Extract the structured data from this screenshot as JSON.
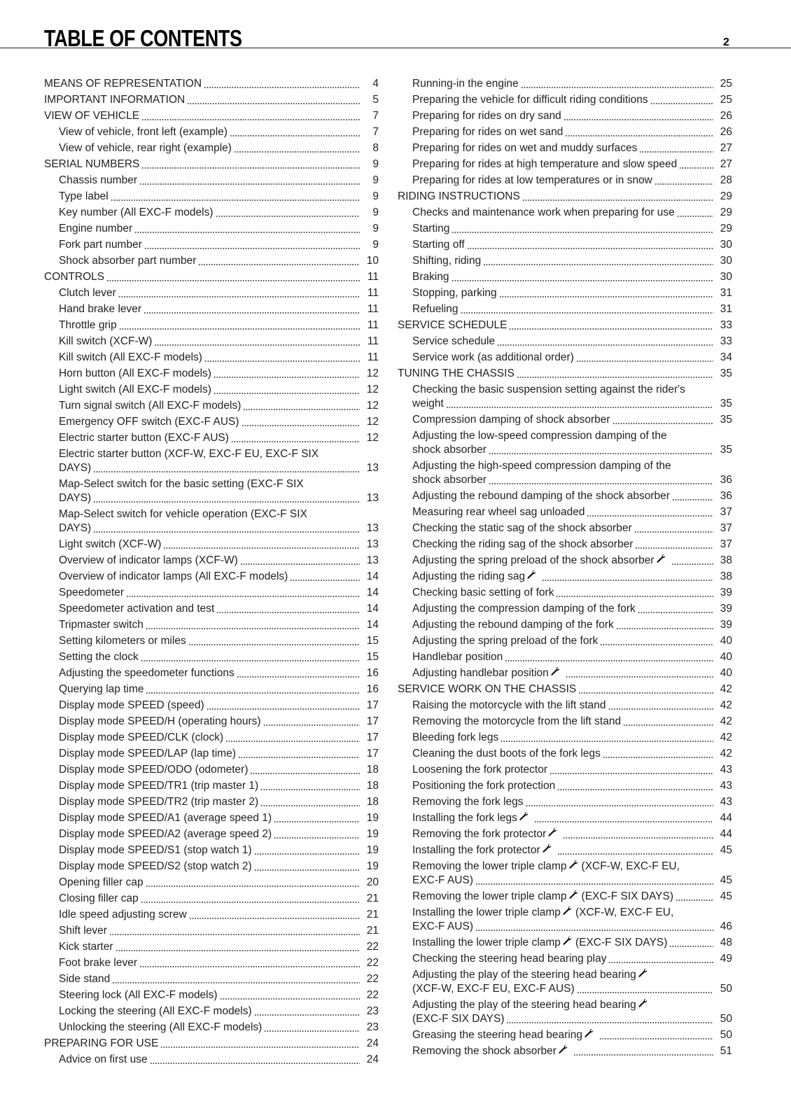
{
  "header": {
    "title": "TABLE OF CONTENTS",
    "page_number": "2"
  },
  "icons": {
    "wrench": "wrench-icon"
  },
  "left_column": [
    {
      "level": 0,
      "text": "MEANS OF REPRESENTATION",
      "page": "4"
    },
    {
      "level": 0,
      "text": "IMPORTANT INFORMATION",
      "page": "5"
    },
    {
      "level": 0,
      "text": "VIEW OF VEHICLE",
      "page": "7"
    },
    {
      "level": 1,
      "text": "View of vehicle, front left (example)",
      "page": "7"
    },
    {
      "level": 1,
      "text": "View of vehicle, rear right (example)",
      "page": "8"
    },
    {
      "level": 0,
      "text": "SERIAL NUMBERS",
      "page": "9"
    },
    {
      "level": 1,
      "text": "Chassis number",
      "page": "9"
    },
    {
      "level": 1,
      "text": "Type label",
      "page": "9"
    },
    {
      "level": 1,
      "text": "Key number (All EXC-F models)",
      "page": "9"
    },
    {
      "level": 1,
      "text": "Engine number",
      "page": "9"
    },
    {
      "level": 1,
      "text": "Fork part number",
      "page": "9"
    },
    {
      "level": 1,
      "text": "Shock absorber part number",
      "page": "10"
    },
    {
      "level": 0,
      "text": "CONTROLS",
      "page": "11"
    },
    {
      "level": 1,
      "text": "Clutch lever",
      "page": "11"
    },
    {
      "level": 1,
      "text": "Hand brake lever",
      "page": "11"
    },
    {
      "level": 1,
      "text": "Throttle grip",
      "page": "11"
    },
    {
      "level": 1,
      "text": "Kill switch (XCF-W)",
      "page": "11"
    },
    {
      "level": 1,
      "text": "Kill switch (All EXC-F models)",
      "page": "11"
    },
    {
      "level": 1,
      "text": "Horn button (All EXC-F models)",
      "page": "12"
    },
    {
      "level": 1,
      "text": "Light switch (All EXC-F models)",
      "page": "12"
    },
    {
      "level": 1,
      "text": "Turn signal switch (All EXC-F models)",
      "page": "12"
    },
    {
      "level": 1,
      "text": "Emergency OFF switch (EXC-F AUS)",
      "page": "12"
    },
    {
      "level": 1,
      "text": "Electric starter button (EXC-F AUS)",
      "page": "12"
    },
    {
      "level": 1,
      "text": "Electric starter button (XCF-W, EXC-F EU, EXC-F SIX",
      "cont": "DAYS)",
      "page": "13"
    },
    {
      "level": 1,
      "text": "Map-Select switch for the basic setting (EXC-F SIX",
      "cont": "DAYS)",
      "page": "13"
    },
    {
      "level": 1,
      "text": "Map-Select switch for vehicle operation (EXC-F SIX",
      "cont": "DAYS)",
      "page": "13"
    },
    {
      "level": 1,
      "text": "Light switch (XCF-W)",
      "page": "13"
    },
    {
      "level": 1,
      "text": "Overview of indicator lamps (XCF-W)",
      "page": "13"
    },
    {
      "level": 1,
      "text": "Overview of indicator lamps (All EXC-F models)",
      "page": "14"
    },
    {
      "level": 1,
      "text": "Speedometer",
      "page": "14"
    },
    {
      "level": 1,
      "text": "Speedometer activation and test",
      "page": "14"
    },
    {
      "level": 1,
      "text": "Tripmaster switch",
      "page": "14"
    },
    {
      "level": 1,
      "text": "Setting kilometers or miles",
      "page": "15"
    },
    {
      "level": 1,
      "text": "Setting the clock",
      "page": "15"
    },
    {
      "level": 1,
      "text": "Adjusting the speedometer functions",
      "page": "16"
    },
    {
      "level": 1,
      "text": "Querying lap time",
      "page": "16"
    },
    {
      "level": 1,
      "text": "Display mode SPEED (speed)",
      "page": "17"
    },
    {
      "level": 1,
      "text": "Display mode SPEED/H (operating hours)",
      "page": "17"
    },
    {
      "level": 1,
      "text": "Display mode SPEED/CLK (clock)",
      "page": "17"
    },
    {
      "level": 1,
      "text": "Display mode SPEED/LAP (lap time)",
      "page": "17"
    },
    {
      "level": 1,
      "text": "Display mode SPEED/ODO (odometer)",
      "page": "18"
    },
    {
      "level": 1,
      "text": "Display mode SPEED/TR1 (trip master 1)",
      "page": "18"
    },
    {
      "level": 1,
      "text": "Display mode SPEED/TR2 (trip master 2)",
      "page": "18"
    },
    {
      "level": 1,
      "text": "Display mode SPEED/A1 (average speed 1)",
      "page": "19"
    },
    {
      "level": 1,
      "text": "Display mode SPEED/A2 (average speed 2)",
      "page": "19"
    },
    {
      "level": 1,
      "text": "Display mode SPEED/S1 (stop watch 1)",
      "page": "19"
    },
    {
      "level": 1,
      "text": "Display mode SPEED/S2 (stop watch 2)",
      "page": "19"
    },
    {
      "level": 1,
      "text": "Opening filler cap",
      "page": "20"
    },
    {
      "level": 1,
      "text": "Closing filler cap",
      "page": "21"
    },
    {
      "level": 1,
      "text": "Idle speed adjusting screw",
      "page": "21"
    },
    {
      "level": 1,
      "text": "Shift lever",
      "page": "21"
    },
    {
      "level": 1,
      "text": "Kick starter",
      "page": "22"
    },
    {
      "level": 1,
      "text": "Foot brake lever",
      "page": "22"
    },
    {
      "level": 1,
      "text": "Side stand",
      "page": "22"
    },
    {
      "level": 1,
      "text": "Steering lock (All EXC-F models)",
      "page": "22"
    },
    {
      "level": 1,
      "text": "Locking the steering (All EXC-F models)",
      "page": "23"
    },
    {
      "level": 1,
      "text": "Unlocking the steering (All EXC-F models)",
      "page": "23"
    },
    {
      "level": 0,
      "text": "PREPARING FOR USE",
      "page": "24"
    },
    {
      "level": 1,
      "text": "Advice on first use",
      "page": "24"
    }
  ],
  "right_column": [
    {
      "level": 1,
      "text": "Running-in the engine",
      "page": "25"
    },
    {
      "level": 1,
      "text": "Preparing the vehicle for difficult riding conditions",
      "page": "25"
    },
    {
      "level": 1,
      "text": "Preparing for rides on dry sand",
      "page": "26"
    },
    {
      "level": 1,
      "text": "Preparing for rides on wet sand",
      "page": "26"
    },
    {
      "level": 1,
      "text": "Preparing for rides on wet and muddy surfaces",
      "page": "27"
    },
    {
      "level": 1,
      "text": "Preparing for rides at high temperature and slow speed",
      "page": "27"
    },
    {
      "level": 1,
      "text": "Preparing for rides at low temperatures or in snow",
      "page": "28"
    },
    {
      "level": 0,
      "text": "RIDING INSTRUCTIONS",
      "page": "29"
    },
    {
      "level": 1,
      "text": "Checks and maintenance work when preparing for use",
      "page": "29"
    },
    {
      "level": 1,
      "text": "Starting",
      "page": "29"
    },
    {
      "level": 1,
      "text": "Starting off",
      "page": "30"
    },
    {
      "level": 1,
      "text": "Shifting, riding",
      "page": "30"
    },
    {
      "level": 1,
      "text": "Braking",
      "page": "30"
    },
    {
      "level": 1,
      "text": "Stopping, parking",
      "page": "31"
    },
    {
      "level": 1,
      "text": "Refueling",
      "page": "31"
    },
    {
      "level": 0,
      "text": "SERVICE SCHEDULE",
      "page": "33"
    },
    {
      "level": 1,
      "text": "Service schedule",
      "page": "33"
    },
    {
      "level": 1,
      "text": "Service work (as additional order)",
      "page": "34"
    },
    {
      "level": 0,
      "text": "TUNING THE CHASSIS",
      "page": "35"
    },
    {
      "level": 1,
      "text": "Checking the basic suspension setting against the rider's",
      "cont": "weight",
      "page": "35"
    },
    {
      "level": 1,
      "text": "Compression damping of shock absorber",
      "page": "35"
    },
    {
      "level": 1,
      "text": "Adjusting the low-speed compression damping of the",
      "cont": "shock absorber",
      "page": "35"
    },
    {
      "level": 1,
      "text": "Adjusting the high-speed compression damping of the",
      "cont": "shock absorber",
      "page": "36"
    },
    {
      "level": 1,
      "text": "Adjusting the rebound damping of the shock absorber",
      "page": "36"
    },
    {
      "level": 1,
      "text": "Measuring rear wheel sag unloaded",
      "page": "37"
    },
    {
      "level": 1,
      "text": "Checking the static sag of the shock absorber",
      "page": "37"
    },
    {
      "level": 1,
      "text": "Checking the riding sag of the shock absorber",
      "page": "37"
    },
    {
      "level": 1,
      "text": "Adjusting the spring preload of the shock absorber",
      "wrench": true,
      "page": "38"
    },
    {
      "level": 1,
      "text": "Adjusting the riding sag",
      "wrench": true,
      "page": "38"
    },
    {
      "level": 1,
      "text": "Checking basic setting of fork",
      "page": "39"
    },
    {
      "level": 1,
      "text": "Adjusting the compression damping of the fork",
      "page": "39"
    },
    {
      "level": 1,
      "text": "Adjusting the rebound damping of the fork",
      "page": "39"
    },
    {
      "level": 1,
      "text": "Adjusting the spring preload of the fork",
      "page": "40"
    },
    {
      "level": 1,
      "text": "Handlebar position",
      "page": "40"
    },
    {
      "level": 1,
      "text": "Adjusting handlebar position",
      "wrench": true,
      "page": "40"
    },
    {
      "level": 0,
      "text": "SERVICE WORK ON THE CHASSIS",
      "page": "42"
    },
    {
      "level": 1,
      "text": "Raising the motorcycle with the lift stand",
      "page": "42"
    },
    {
      "level": 1,
      "text": "Removing the motorcycle from the lift stand",
      "page": "42"
    },
    {
      "level": 1,
      "text": "Bleeding fork legs",
      "page": "42"
    },
    {
      "level": 1,
      "text": "Cleaning the dust boots of the fork legs",
      "page": "42"
    },
    {
      "level": 1,
      "text": "Loosening the fork protector",
      "page": "43"
    },
    {
      "level": 1,
      "text": "Positioning the fork protection",
      "page": "43"
    },
    {
      "level": 1,
      "text": "Removing the fork legs",
      "page": "43"
    },
    {
      "level": 1,
      "text": "Installing the fork legs",
      "wrench": true,
      "page": "44"
    },
    {
      "level": 1,
      "text": "Removing the fork protector",
      "wrench": true,
      "page": "44"
    },
    {
      "level": 1,
      "text": "Installing the fork protector",
      "wrench": true,
      "page": "45"
    },
    {
      "level": 1,
      "text": "Removing the lower triple clamp",
      "wrench": true,
      "after": "(XCF-W, EXC-F EU,",
      "cont": "EXC-F AUS)",
      "page": "45"
    },
    {
      "level": 1,
      "text": "Removing the lower triple clamp",
      "wrench": true,
      "after": "(EXC-F SIX DAYS)",
      "page": "45"
    },
    {
      "level": 1,
      "text": "Installing the lower triple clamp",
      "wrench": true,
      "after": "(XCF-W, EXC-F EU,",
      "cont": "EXC-F AUS)",
      "page": "46"
    },
    {
      "level": 1,
      "text": "Installing the lower triple clamp",
      "wrench": true,
      "after": "(EXC-F SIX DAYS)",
      "page": "48"
    },
    {
      "level": 1,
      "text": "Checking the steering head bearing play",
      "page": "49"
    },
    {
      "level": 1,
      "text": "Adjusting the play of the steering head bearing",
      "wrench": true,
      "cont": "(XCF-W, EXC-F EU, EXC-F AUS)",
      "page": "50"
    },
    {
      "level": 1,
      "text": "Adjusting the play of the steering head bearing",
      "wrench": true,
      "cont": "(EXC-F SIX DAYS)",
      "page": "50"
    },
    {
      "level": 1,
      "text": "Greasing the steering head bearing",
      "wrench": true,
      "page": "50"
    },
    {
      "level": 1,
      "text": "Removing the shock absorber",
      "wrench": true,
      "page": "51"
    }
  ]
}
